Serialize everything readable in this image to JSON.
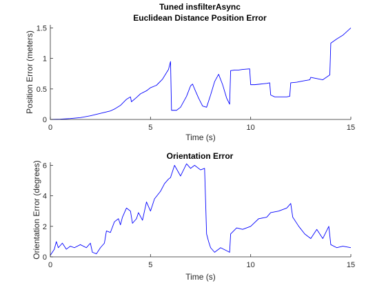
{
  "chart_data": [
    {
      "type": "line",
      "title": "Tuned insfilterAsync",
      "subtitle": "Euclidean Distance Position Error",
      "xlabel": "Time (s)",
      "ylabel": "Position Error (meters)",
      "xlim": [
        0,
        15
      ],
      "ylim": [
        0,
        1.55
      ],
      "xticks": [
        0,
        5,
        10,
        15
      ],
      "yticks": [
        0,
        0.5,
        1,
        1.5
      ],
      "ytick_labels": [
        "0",
        "0.5",
        "1",
        "1.5"
      ],
      "grid": false,
      "color": "#0000ff",
      "series": [
        {
          "x": [
            0,
            0.5,
            1.0,
            1.5,
            2.0,
            2.5,
            3.0,
            3.2,
            3.5,
            3.8,
            4.0,
            4.05,
            4.3,
            4.5,
            4.8,
            5.0,
            5.3,
            5.6,
            5.9,
            6.0,
            6.05,
            6.3,
            6.5,
            6.8,
            7.0,
            7.1,
            7.2,
            7.4,
            7.6,
            7.8,
            8.0,
            8.2,
            8.4,
            8.6,
            8.8,
            8.95,
            9.0,
            9.2,
            9.4,
            9.6,
            9.95,
            10.0,
            10.2,
            10.5,
            10.8,
            10.95,
            11.0,
            11.2,
            11.5,
            11.8,
            11.95,
            12.0,
            12.3,
            12.6,
            12.95,
            13.0,
            13.3,
            13.6,
            13.95,
            14.0,
            14.3,
            14.6,
            15.0
          ],
          "y": [
            0,
            0.005,
            0.015,
            0.03,
            0.06,
            0.1,
            0.14,
            0.17,
            0.23,
            0.33,
            0.37,
            0.29,
            0.36,
            0.42,
            0.47,
            0.52,
            0.56,
            0.66,
            0.82,
            0.95,
            0.15,
            0.15,
            0.2,
            0.38,
            0.55,
            0.58,
            0.5,
            0.35,
            0.22,
            0.2,
            0.4,
            0.62,
            0.74,
            0.57,
            0.35,
            0.25,
            0.8,
            0.81,
            0.81,
            0.82,
            0.83,
            0.57,
            0.57,
            0.58,
            0.59,
            0.6,
            0.4,
            0.37,
            0.37,
            0.37,
            0.38,
            0.6,
            0.61,
            0.63,
            0.65,
            0.69,
            0.67,
            0.65,
            0.73,
            1.25,
            1.32,
            1.38,
            1.5
          ]
        }
      ]
    },
    {
      "type": "line",
      "title": "Orientation Error",
      "xlabel": "Time (s)",
      "ylabel": "Orientation Error (degrees)",
      "xlim": [
        0,
        15
      ],
      "ylim": [
        0,
        6.2
      ],
      "xticks": [
        0,
        5,
        10,
        15
      ],
      "yticks": [
        0,
        2,
        4,
        6
      ],
      "ytick_labels": [
        "0",
        "2",
        "4",
        "6"
      ],
      "grid": false,
      "color": "#0000ff",
      "series": [
        {
          "x": [
            0,
            0.2,
            0.3,
            0.4,
            0.6,
            0.8,
            1.0,
            1.2,
            1.5,
            1.8,
            2.0,
            2.1,
            2.3,
            2.5,
            2.7,
            2.8,
            3.0,
            3.2,
            3.4,
            3.5,
            3.6,
            3.8,
            4.0,
            4.1,
            4.3,
            4.4,
            4.6,
            4.8,
            5.0,
            5.2,
            5.5,
            5.7,
            5.9,
            6.0,
            6.2,
            6.5,
            6.8,
            7.0,
            7.2,
            7.5,
            7.7,
            7.8,
            7.9,
            8.0,
            8.2,
            8.5,
            8.8,
            8.95,
            9.0,
            9.3,
            9.6,
            10.0,
            10.4,
            10.8,
            11.0,
            11.4,
            11.8,
            12.0,
            12.1,
            12.4,
            12.7,
            13.0,
            13.3,
            13.6,
            13.9,
            14.0,
            14.3,
            14.6,
            15.0
          ],
          "y": [
            0.1,
            0.5,
            1.0,
            0.6,
            0.9,
            0.5,
            0.7,
            0.6,
            0.8,
            0.6,
            0.9,
            0.3,
            0.2,
            0.6,
            0.9,
            1.7,
            1.6,
            2.3,
            2.5,
            2.1,
            2.6,
            3.2,
            3.0,
            2.2,
            2.5,
            2.9,
            2.4,
            3.6,
            3.0,
            3.8,
            4.3,
            4.8,
            5.1,
            5.2,
            6.0,
            5.3,
            6.1,
            5.8,
            6.0,
            5.7,
            5.8,
            1.5,
            1.0,
            0.6,
            0.3,
            0.6,
            0.4,
            0.3,
            1.5,
            1.9,
            1.8,
            2.0,
            2.5,
            2.6,
            2.9,
            3.0,
            3.2,
            3.5,
            2.6,
            2.0,
            1.5,
            1.2,
            1.8,
            1.2,
            2.0,
            0.8,
            0.6,
            0.7,
            0.6
          ]
        }
      ]
    }
  ]
}
